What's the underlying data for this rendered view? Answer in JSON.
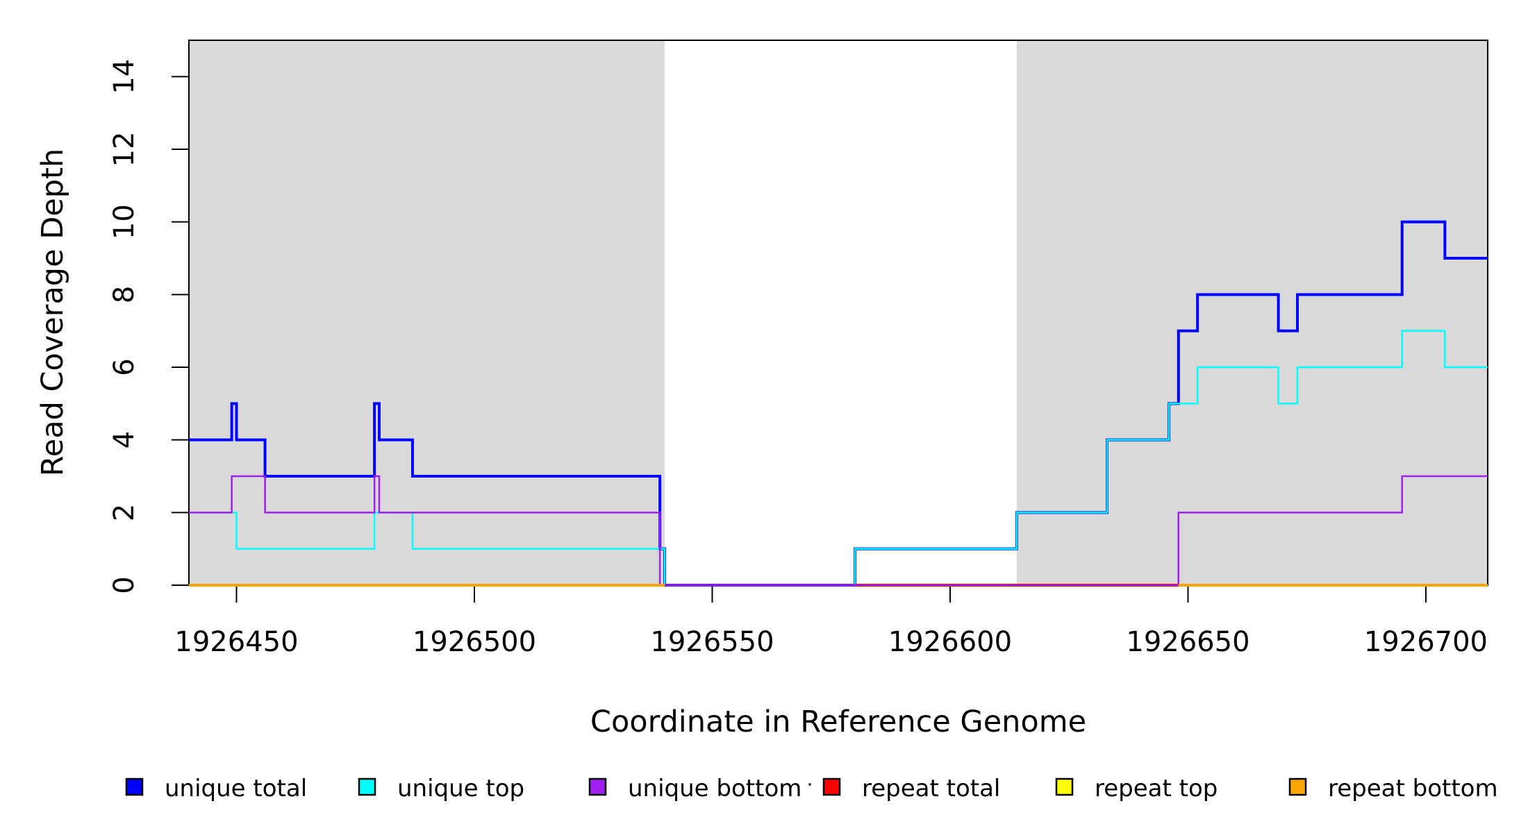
{
  "figure": {
    "xlabel": "Coordinate in Reference Genome",
    "ylabel": "Read Coverage Depth",
    "background": "#FFFFFF"
  },
  "chart_data": {
    "type": "line",
    "subtype": "step-coverage",
    "title": "",
    "xlabel": "Coordinate in Reference Genome",
    "ylabel": "Read Coverage Depth",
    "xlim": [
      1926440,
      1926713
    ],
    "ylim": [
      0,
      15
    ],
    "x_ticks": [
      1926450,
      1926500,
      1926550,
      1926600,
      1926650,
      1926700
    ],
    "y_ticks": [
      0,
      2,
      4,
      6,
      8,
      10,
      12,
      14
    ],
    "grid": false,
    "legend_position": "bottom",
    "region_color": "#D9D9D9",
    "shaded_regions": [
      {
        "x0": 1926440,
        "x1": 1926540
      },
      {
        "x0": 1926614,
        "x1": 1926713
      }
    ],
    "series": [
      {
        "name": "unique total",
        "color": "#0000FF",
        "width": 4,
        "points": [
          [
            1926440,
            4
          ],
          [
            1926449,
            5
          ],
          [
            1926450,
            4
          ],
          [
            1926456,
            3
          ],
          [
            1926479,
            5
          ],
          [
            1926480,
            4
          ],
          [
            1926487,
            3
          ],
          [
            1926539,
            1
          ],
          [
            1926540,
            0
          ],
          [
            1926580,
            1
          ],
          [
            1926614,
            2
          ],
          [
            1926633,
            4
          ],
          [
            1926646,
            5
          ],
          [
            1926648,
            7
          ],
          [
            1926652,
            8
          ],
          [
            1926669,
            7
          ],
          [
            1926673,
            8
          ],
          [
            1926695,
            10
          ],
          [
            1926704,
            9
          ],
          [
            1926713,
            9
          ]
        ]
      },
      {
        "name": "unique top",
        "color": "#00FFFF",
        "width": 2.5,
        "points": [
          [
            1926440,
            2
          ],
          [
            1926450,
            1
          ],
          [
            1926479,
            2
          ],
          [
            1926487,
            1
          ],
          [
            1926540,
            0
          ],
          [
            1926580,
            1
          ],
          [
            1926614,
            2
          ],
          [
            1926633,
            4
          ],
          [
            1926646,
            5
          ],
          [
            1926652,
            6
          ],
          [
            1926669,
            5
          ],
          [
            1926673,
            6
          ],
          [
            1926695,
            7
          ],
          [
            1926704,
            6
          ],
          [
            1926713,
            6
          ]
        ]
      },
      {
        "name": "unique bottom",
        "color": "#A020F0",
        "width": 2.5,
        "points": [
          [
            1926440,
            2
          ],
          [
            1926449,
            3
          ],
          [
            1926456,
            2
          ],
          [
            1926479,
            3
          ],
          [
            1926480,
            2
          ],
          [
            1926539,
            0
          ],
          [
            1926648,
            2
          ],
          [
            1926695,
            3
          ],
          [
            1926713,
            3
          ]
        ]
      },
      {
        "name": "repeat total",
        "color": "#FF0000",
        "width": 2.5,
        "points": [
          [
            1926440,
            0
          ],
          [
            1926713,
            0
          ]
        ]
      },
      {
        "name": "repeat top",
        "color": "#FFFF00",
        "width": 2.5,
        "points": [
          [
            1926440,
            0
          ],
          [
            1926713,
            0
          ]
        ]
      },
      {
        "name": "repeat bottom",
        "color": "#FFA500",
        "width": 4,
        "points": [
          [
            1926440,
            0
          ],
          [
            1926713,
            0
          ]
        ]
      }
    ],
    "zero_line_overlays": [
      {
        "x0": 1926440,
        "x1": 1926540,
        "color": "#FFA500",
        "width": 4
      },
      {
        "x0": 1926540,
        "x1": 1926580,
        "color": "#A020F0",
        "width": 3
      },
      {
        "x0": 1926580,
        "x1": 1926648,
        "color": "#FF0000",
        "width": 4
      },
      {
        "x0": 1926580,
        "x1": 1926648,
        "color": "#A020F0",
        "width": 2
      },
      {
        "x0": 1926648,
        "x1": 1926713,
        "color": "#FFA500",
        "width": 4
      }
    ],
    "legend": [
      {
        "label": "unique total",
        "color": "#0000FF"
      },
      {
        "label": "unique top",
        "color": "#00FFFF"
      },
      {
        "label": "unique bottom",
        "color": "#A020F0"
      },
      {
        "label": "repeat total",
        "color": "#FF0000"
      },
      {
        "label": "repeat top",
        "color": "#FFFF00"
      },
      {
        "label": "repeat bottom",
        "color": "#FFA500"
      }
    ]
  }
}
